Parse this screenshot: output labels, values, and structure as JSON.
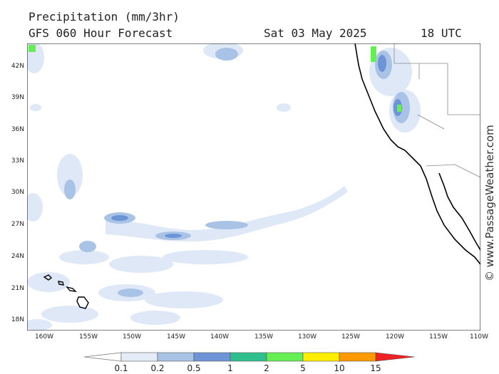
{
  "header": {
    "line1": "Precipitation (mm/3hr)",
    "line2": "GFS 060 Hour Forecast",
    "date": "Sat 03 May 2025",
    "time": "18 UTC"
  },
  "axes": {
    "lat_labels": [
      "42N",
      "39N",
      "36N",
      "33N",
      "30N",
      "27N",
      "24N",
      "21N",
      "18N"
    ],
    "lon_labels": [
      "160W",
      "155W",
      "150W",
      "145W",
      "140W",
      "135W",
      "130W",
      "125W",
      "120W",
      "115W",
      "110W"
    ]
  },
  "credit": "© www.PassageWeather.com",
  "legend": {
    "labels": [
      "0.1",
      "0.2",
      "0.5",
      "1",
      "2",
      "5",
      "10",
      "15"
    ],
    "colors": [
      "#ffffff",
      "#e4ecf8",
      "#a9c3e6",
      "#6d94d6",
      "#2fbf8c",
      "#66ee55",
      "#ffee00",
      "#ff9900",
      "#ee2222"
    ]
  }
}
